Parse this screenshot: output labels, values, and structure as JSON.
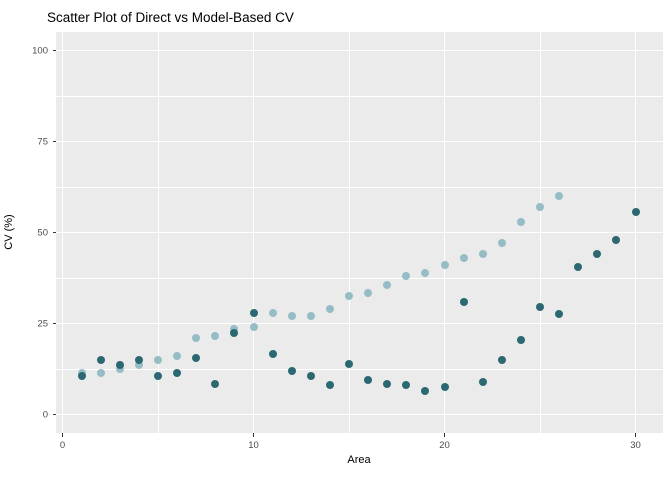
{
  "title": "Scatter Plot of Direct vs Model-Based CV",
  "colors": {
    "panel_background": "#ebebeb",
    "gridline": "#ffffff",
    "tick_mark": "#333333",
    "tick_label": "#4d4d4d",
    "direct_point": "#2c6872",
    "model_based_point": "#96bdc6"
  },
  "chart_data": {
    "type": "scatter",
    "title": "Scatter Plot of Direct vs Model-Based CV",
    "xlabel": "Area",
    "ylabel": "CV (%)",
    "xlim": [
      0,
      30
    ],
    "ylim": [
      0,
      100
    ],
    "x_major_ticks": [
      0,
      10,
      20,
      30
    ],
    "x_minor_gridlines": [
      5,
      15,
      25
    ],
    "y_major_ticks": [
      0,
      25,
      50,
      75,
      100
    ],
    "y_minor_gridlines": [
      12.5,
      37.5,
      62.5,
      87.5
    ],
    "grid": "on",
    "legend_position": "none",
    "series": [
      {
        "name": "model_based",
        "color": "#96bdc6",
        "points": [
          [
            1,
            11.5
          ],
          [
            2,
            11.5
          ],
          [
            3,
            12.5
          ],
          [
            4,
            13.5
          ],
          [
            5,
            15
          ],
          [
            6,
            16
          ],
          [
            7,
            21
          ],
          [
            8,
            21.5
          ],
          [
            9,
            23.5
          ],
          [
            10,
            24
          ],
          [
            11,
            28
          ],
          [
            12,
            27
          ],
          [
            13,
            27
          ],
          [
            14,
            29
          ],
          [
            15,
            32.5
          ],
          [
            16,
            33.5
          ],
          [
            17,
            35.5
          ],
          [
            18,
            38
          ],
          [
            19,
            39
          ],
          [
            20,
            41
          ],
          [
            21,
            43
          ],
          [
            22,
            44
          ],
          [
            23,
            47
          ],
          [
            24,
            53
          ],
          [
            25,
            57
          ],
          [
            26,
            60
          ]
        ]
      },
      {
        "name": "direct",
        "color": "#2c6872",
        "points": [
          [
            1,
            10.5
          ],
          [
            2,
            15
          ],
          [
            3,
            13.5
          ],
          [
            4,
            15
          ],
          [
            5,
            10.5
          ],
          [
            6,
            11.5
          ],
          [
            7,
            15.5
          ],
          [
            8,
            8.5
          ],
          [
            9,
            22.5
          ],
          [
            10,
            28
          ],
          [
            11,
            16.5
          ],
          [
            12,
            12
          ],
          [
            13,
            10.5
          ],
          [
            14,
            8
          ],
          [
            15,
            14
          ],
          [
            16,
            9.5
          ],
          [
            17,
            8.5
          ],
          [
            18,
            8
          ],
          [
            19,
            6.5
          ],
          [
            20,
            7.5
          ],
          [
            21,
            31
          ],
          [
            22,
            9
          ],
          [
            23,
            15
          ],
          [
            24,
            20.5
          ],
          [
            25,
            29.5
          ],
          [
            26,
            27.5
          ],
          [
            27,
            40.5
          ],
          [
            28,
            44
          ],
          [
            29,
            48
          ],
          [
            30,
            55.5
          ]
        ]
      }
    ]
  }
}
